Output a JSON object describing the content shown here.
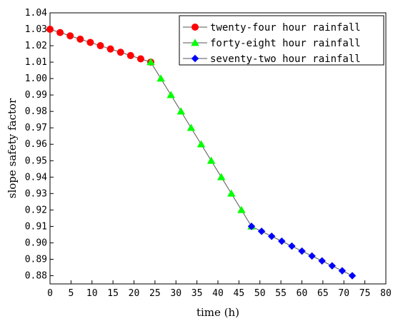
{
  "chart_data": {
    "type": "line",
    "xlabel": "time (h)",
    "ylabel": "slope safety factor",
    "xlim": [
      0,
      80
    ],
    "ylim": [
      0.875,
      1.04
    ],
    "xticks": [
      0,
      5,
      10,
      15,
      20,
      25,
      30,
      35,
      40,
      45,
      50,
      55,
      60,
      65,
      70,
      75,
      80
    ],
    "yticks": [
      0.88,
      0.89,
      0.9,
      0.91,
      0.92,
      0.93,
      0.94,
      0.95,
      0.96,
      0.97,
      0.98,
      0.99,
      1.0,
      1.01,
      1.02,
      1.03,
      1.04
    ],
    "ytick_labels": [
      "0.88",
      "0.89",
      "0.90",
      "0.91",
      "0.92",
      "0.93",
      "0.94",
      "0.95",
      "0.96",
      "0.97",
      "0.98",
      "0.99",
      "1.00",
      "1.01",
      "1.02",
      "1.03",
      "1.04"
    ],
    "grid": false,
    "legend_position": "top-right",
    "series": [
      {
        "name": "twenty-four hour rainfall",
        "marker": "circle",
        "color": "#ff0000",
        "x": [
          0,
          2.4,
          4.8,
          7.2,
          9.6,
          12,
          14.4,
          16.8,
          19.2,
          21.6,
          24
        ],
        "y": [
          1.03,
          1.028,
          1.026,
          1.024,
          1.022,
          1.02,
          1.018,
          1.016,
          1.014,
          1.012,
          1.01
        ]
      },
      {
        "name": "forty-eight hour rainfall",
        "marker": "triangle",
        "color": "#00ff00",
        "x": [
          24,
          26.4,
          28.8,
          31.2,
          33.6,
          36,
          38.4,
          40.8,
          43.2,
          45.6,
          48
        ],
        "y": [
          1.01,
          1.0,
          0.99,
          0.98,
          0.97,
          0.96,
          0.95,
          0.94,
          0.93,
          0.92,
          0.91
        ]
      },
      {
        "name": "seventy-two hour rainfall",
        "marker": "diamond",
        "color": "#0000ff",
        "x": [
          48,
          50.4,
          52.8,
          55.2,
          57.6,
          60,
          62.4,
          64.8,
          67.2,
          69.6,
          72
        ],
        "y": [
          0.91,
          0.907,
          0.904,
          0.901,
          0.898,
          0.895,
          0.892,
          0.889,
          0.886,
          0.883,
          0.88
        ]
      }
    ]
  }
}
